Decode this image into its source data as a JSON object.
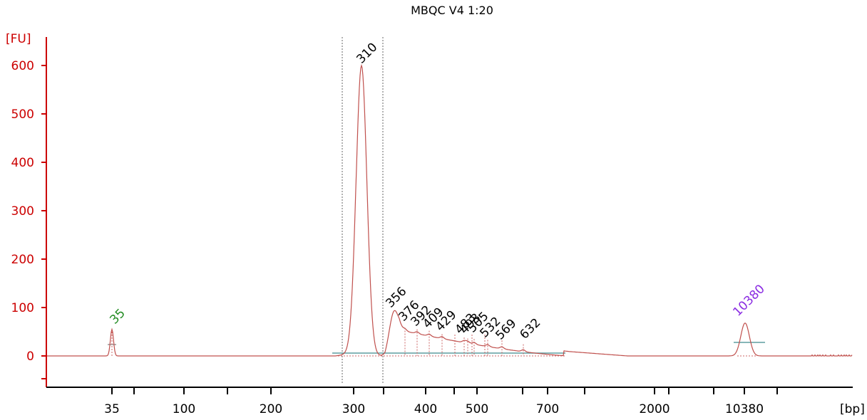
{
  "chart_data": {
    "type": "line",
    "title": "MBQC V4 1:20",
    "ylabel": "[FU]",
    "xlabel": "[bp]",
    "ylim": [
      -60,
      660
    ],
    "y_ticks": [
      0,
      100,
      200,
      300,
      400,
      500,
      600
    ],
    "x_ticks": [
      "35",
      "100",
      "200",
      "300",
      "400",
      "500",
      "700",
      "2000",
      "10380"
    ],
    "colors": {
      "trace": "#c0504d",
      "yaxis": "#cc0000",
      "baseline": "#5f9ea0",
      "lower_marker": "#228b22",
      "upper_marker": "#8a2be2",
      "region": "#666666"
    },
    "peaks": [
      {
        "label": "35",
        "fu": 55,
        "kind": "lower_marker"
      },
      {
        "label": "310",
        "fu": 600,
        "kind": "sample"
      },
      {
        "label": "356",
        "fu": 88,
        "kind": "sample"
      },
      {
        "label": "376",
        "fu": 58,
        "kind": "sample"
      },
      {
        "label": "392",
        "fu": 55,
        "kind": "sample"
      },
      {
        "label": "409",
        "fu": 52,
        "kind": "sample"
      },
      {
        "label": "429",
        "fu": 45,
        "kind": "sample"
      },
      {
        "label": "483",
        "fu": 38,
        "kind": "sample"
      },
      {
        "label": "493",
        "fu": 36,
        "kind": "sample"
      },
      {
        "label": "505",
        "fu": 35,
        "kind": "sample"
      },
      {
        "label": "532",
        "fu": 33,
        "kind": "sample"
      },
      {
        "label": "569",
        "fu": 32,
        "kind": "sample"
      },
      {
        "label": "632",
        "fu": 24,
        "kind": "sample"
      },
      {
        "label": "10380",
        "fu": 68,
        "kind": "upper_marker"
      }
    ]
  }
}
